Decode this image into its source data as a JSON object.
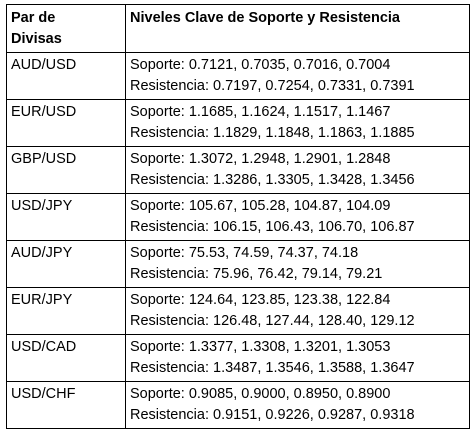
{
  "table": {
    "header": {
      "col1_line1": "Par de",
      "col1_line2": "Divisas",
      "col2": "Niveles Clave de Soporte y Resistencia"
    },
    "rows": [
      {
        "pair": "AUD/USD",
        "support": "Soporte: 0.7121, 0.7035, 0.7016, 0.7004",
        "resistance": "Resistencia: 0.7197, 0.7254, 0.7331, 0.7391"
      },
      {
        "pair": "EUR/USD",
        "support": "Soporte: 1.1685, 1.1624, 1.1517, 1.1467",
        "resistance": "Resistencia: 1.1829, 1.1848, 1.1863, 1.1885"
      },
      {
        "pair": "GBP/USD",
        "support": "Soporte: 1.3072, 1.2948, 1.2901, 1.2848",
        "resistance": "Resistencia: 1.3286, 1.3305, 1.3428, 1.3456"
      },
      {
        "pair": "USD/JPY",
        "support": "Soporte: 105.67, 105.28, 104.87, 104.09",
        "resistance": "Resistencia: 106.15, 106.43, 106.70, 106.87"
      },
      {
        "pair": "AUD/JPY",
        "support": "Soporte: 75.53, 74.59, 74.37, 74.18",
        "resistance": "Resistencia: 75.96, 76.42, 79.14, 79.21"
      },
      {
        "pair": "EUR/JPY",
        "support": "Soporte: 124.64, 123.85, 123.38, 122.84",
        "resistance": "Resistencia: 126.48, 127.44, 128.40, 129.12"
      },
      {
        "pair": "USD/CAD",
        "support": "Soporte: 1.3377, 1.3308, 1.3201, 1.3053",
        "resistance": "Resistencia: 1.3487, 1.3546, 1.3588, 1.3647"
      },
      {
        "pair": "USD/CHF",
        "support": "Soporte: 0.9085, 0.9000, 0.8950, 0.8900",
        "resistance": "Resistencia: 0.9151, 0.9226, 0.9287, 0.9318"
      }
    ]
  }
}
